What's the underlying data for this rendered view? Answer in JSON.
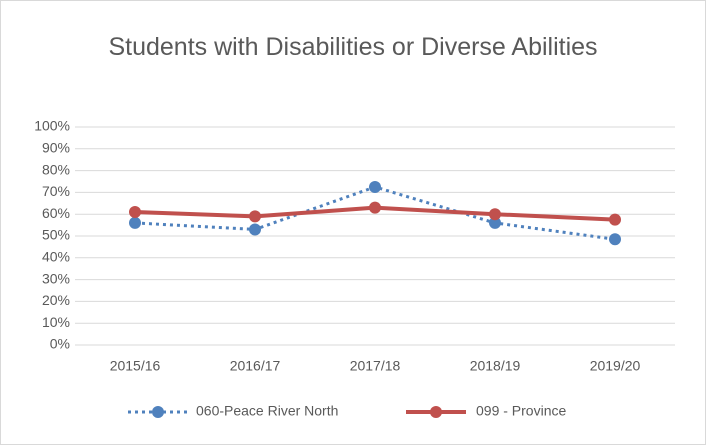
{
  "chart_data": {
    "type": "line",
    "title": "Students with Disabilities or Diverse Abilities",
    "categories": [
      "2015/16",
      "2016/17",
      "2017/18",
      "2018/19",
      "2019/20"
    ],
    "series": [
      {
        "name": "060-Peace River North",
        "color": "#4f81bd",
        "style": "dotted",
        "values": [
          56,
          53,
          72.5,
          56,
          48.5
        ]
      },
      {
        "name": "099 - Province",
        "color": "#c0504d",
        "style": "solid",
        "values": [
          61,
          59,
          63,
          60,
          57.5
        ]
      }
    ],
    "ylim": [
      0,
      100
    ],
    "yticks": [
      {
        "value": 0,
        "label": "0%"
      },
      {
        "value": 10,
        "label": "10%"
      },
      {
        "value": 20,
        "label": "20%"
      },
      {
        "value": 30,
        "label": "30%"
      },
      {
        "value": 40,
        "label": "40%"
      },
      {
        "value": 50,
        "label": "50%"
      },
      {
        "value": 60,
        "label": "60%"
      },
      {
        "value": 70,
        "label": "70%"
      },
      {
        "value": 80,
        "label": "80%"
      },
      {
        "value": 90,
        "label": "90%"
      },
      {
        "value": 100,
        "label": "100%"
      }
    ],
    "grid": true,
    "legend": "bottom"
  }
}
